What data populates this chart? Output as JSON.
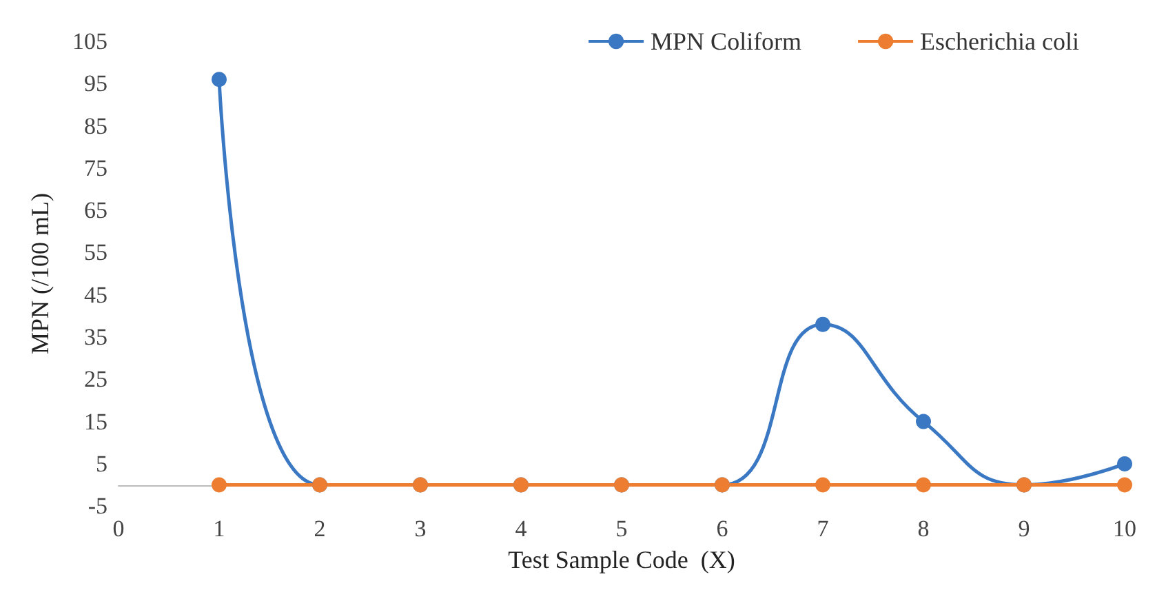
{
  "chart_data": {
    "type": "line",
    "xlabel": "Test Sample Code  (X)",
    "ylabel": "MPN (/100 mL)",
    "x": [
      1,
      2,
      3,
      4,
      5,
      6,
      7,
      8,
      9,
      10
    ],
    "series": [
      {
        "name": "MPN Coliform",
        "color": "#3a78c3",
        "values": [
          96,
          0,
          0,
          0,
          0,
          0,
          38,
          15,
          0,
          5
        ]
      },
      {
        "name": "Escherichia coli",
        "color": "#ed7d31",
        "values": [
          0,
          0,
          0,
          0,
          0,
          0,
          0,
          0,
          0,
          0
        ]
      }
    ],
    "xlim": [
      0,
      10
    ],
    "xticks": [
      0,
      1,
      2,
      3,
      4,
      5,
      6,
      7,
      8,
      9,
      10
    ],
    "ylim": [
      -5,
      105
    ],
    "yticks": [
      -5,
      5,
      15,
      25,
      35,
      45,
      55,
      65,
      75,
      85,
      95,
      105
    ],
    "grid": false,
    "legend": "top right",
    "marker": "circle",
    "line_style": "solid"
  }
}
